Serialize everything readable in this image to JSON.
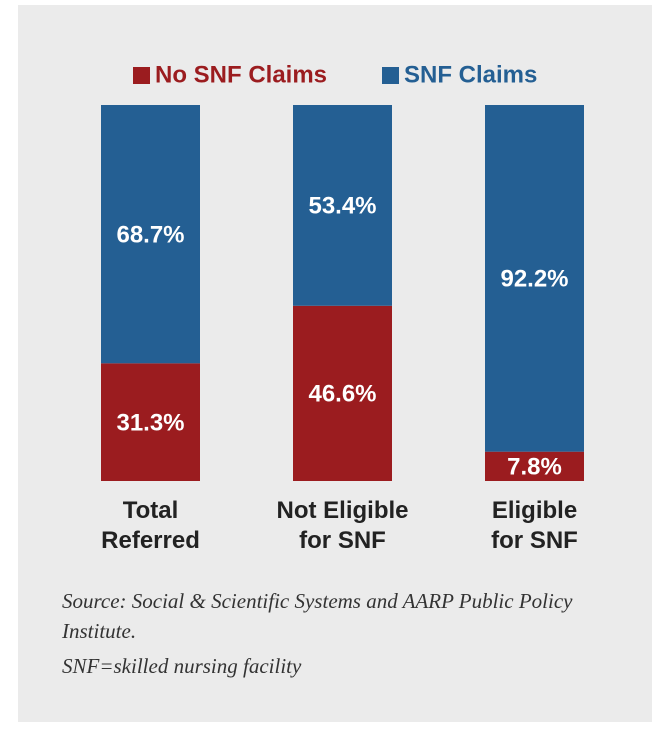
{
  "chart_data": {
    "type": "stacked_bar",
    "categories": [
      "Total\nReferred",
      "Not Eligible\nfor SNF",
      "Eligible\nfor SNF"
    ],
    "series": [
      {
        "name": "No SNF Claims",
        "color": "#9b1c1f",
        "values": [
          31.3,
          46.6,
          7.8
        ],
        "value_labels": [
          "31.3%",
          "46.6%",
          "7.8%"
        ]
      },
      {
        "name": "SNF Claims",
        "color": "#245f93",
        "values": [
          68.7,
          53.4,
          92.2
        ],
        "value_labels": [
          "68.7%",
          "53.4%",
          "92.2%"
        ]
      }
    ],
    "ylim": [
      0,
      100
    ],
    "legend": "top",
    "notes": [
      "Source: Social & Scientific Systems and AARP Public Policy Institute.",
      "SNF=skilled nursing facility"
    ]
  }
}
